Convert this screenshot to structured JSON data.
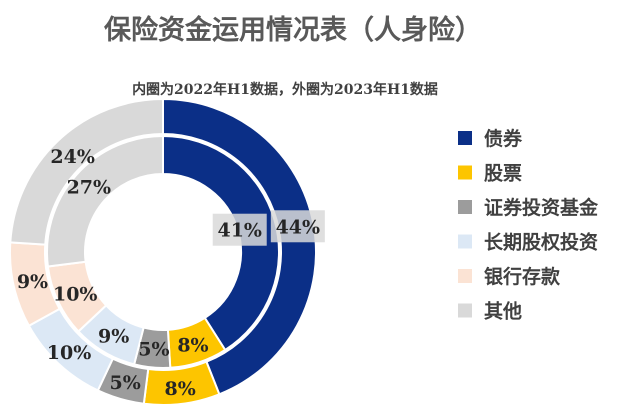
{
  "chart_data": {
    "type": "pie",
    "style": "donut",
    "title": "保险资金运用情况表（人身险）",
    "subtitle": "内圈为2022年H1数据，外圈为2023年H1数据",
    "categories": [
      "债券",
      "股票",
      "证券投资基金",
      "长期股权投资",
      "银行存款",
      "其他"
    ],
    "colors": [
      "#0b2f87",
      "#fdc500",
      "#9c9c9c",
      "#dce8f5",
      "#fbe3d4",
      "#d9d9d9"
    ],
    "series": [
      {
        "ring": "outer",
        "values": [
          44,
          8,
          5,
          10,
          9,
          24
        ],
        "labels": [
          "44%",
          "8%",
          "5%",
          "10%",
          "9%",
          "24%"
        ]
      },
      {
        "ring": "inner",
        "values": [
          41,
          8,
          5,
          9,
          10,
          27
        ],
        "labels": [
          "41%",
          "8%",
          "5%",
          "9%",
          "10%",
          "27%"
        ]
      }
    ],
    "legend_position": "right"
  }
}
